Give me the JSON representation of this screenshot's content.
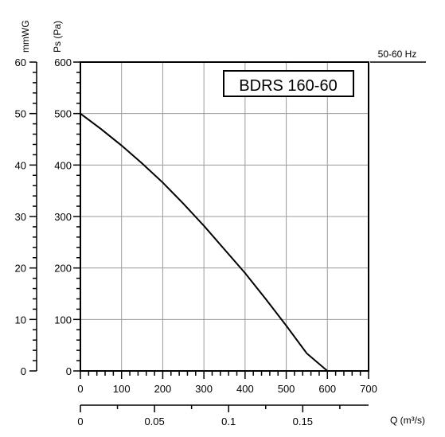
{
  "chart_data": {
    "type": "line",
    "title_box": "BDRS 160-60",
    "frequency_label": "50-60 Hz",
    "left_axis_label": "mmWG",
    "pa_axis_label": "Ps (Pa)",
    "bottom_axis_label": "Q (m³/s)",
    "x_label": "",
    "x_ticks": [
      "0",
      "100",
      "200",
      "300",
      "400",
      "500",
      "600",
      "700"
    ],
    "x2_ticks": [
      "0",
      "0.05",
      "0.1",
      "0.15"
    ],
    "y_ticks": [
      "0",
      "100",
      "200",
      "300",
      "400",
      "500",
      "600"
    ],
    "y2_ticks": [
      "0",
      "10",
      "20",
      "30",
      "40",
      "50",
      "60"
    ],
    "xlim": [
      0,
      700
    ],
    "ylim": [
      0,
      600
    ],
    "x2lim": [
      0,
      0.1944
    ],
    "y2lim": [
      0,
      60
    ],
    "grid": true,
    "series": [
      {
        "x": [
          0,
          50,
          100,
          150,
          200,
          250,
          300,
          350,
          400,
          450,
          500,
          550,
          600
        ],
        "values": [
          500,
          470,
          438,
          403,
          366,
          325,
          282,
          236,
          190,
          140,
          88,
          34,
          0
        ]
      }
    ]
  }
}
